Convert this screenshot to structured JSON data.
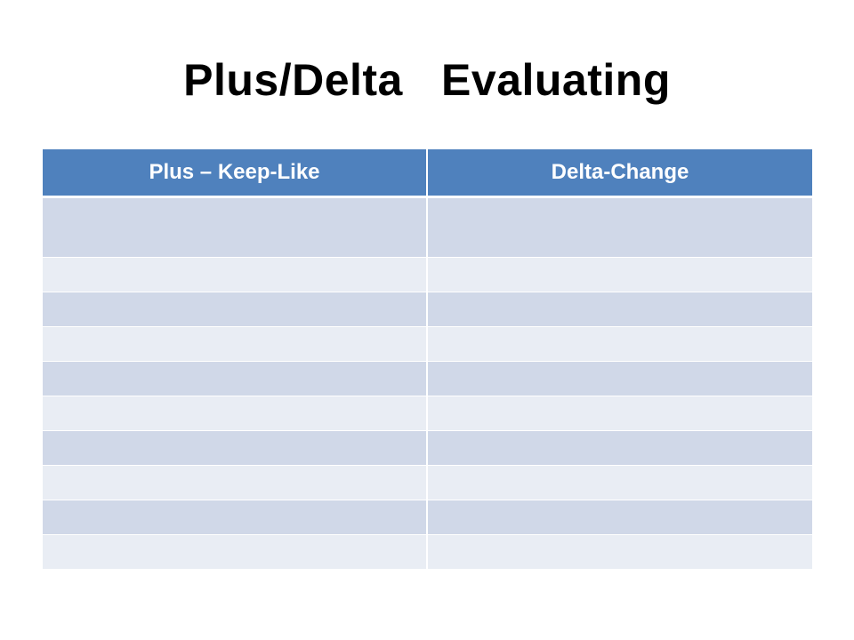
{
  "slide": {
    "title": "Plus/Delta   Evaluating"
  },
  "table": {
    "headers": [
      "Plus – Keep-Like",
      "Delta-Change"
    ],
    "header_color": "#4f81bd",
    "row_colors": [
      "#d0d8e8",
      "#e9edf4"
    ],
    "rows": [
      [
        "",
        ""
      ],
      [
        "",
        ""
      ],
      [
        "",
        ""
      ],
      [
        "",
        ""
      ],
      [
        "",
        ""
      ],
      [
        "",
        ""
      ],
      [
        "",
        ""
      ],
      [
        "",
        ""
      ],
      [
        "",
        ""
      ],
      [
        "",
        ""
      ]
    ]
  }
}
